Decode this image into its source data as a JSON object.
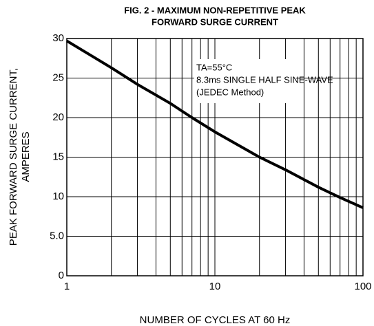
{
  "chart_data": {
    "type": "line",
    "title": [
      "FIG. 2 - MAXIMUM NON-REPETITIVE PEAK",
      "FORWARD SURGE CURRENT"
    ],
    "x_label": "NUMBER OF CYCLES AT 60 Hz",
    "y_label": [
      "PEAK FORWARD SURGE CURRENT,",
      "AMPERES"
    ],
    "annotation": [
      "TA=55°C",
      "8.3ms SINGLE HALF SINE-WAVE",
      "(JEDEC Method)"
    ],
    "x": [
      1,
      2,
      3,
      5,
      7,
      10,
      20,
      30,
      50,
      70,
      100
    ],
    "series": [
      {
        "color": "#000000",
        "values": [
          29.7,
          26.3,
          24.2,
          21.8,
          20.0,
          18.2,
          15.0,
          13.4,
          11.2,
          9.9,
          8.6
        ]
      }
    ],
    "xlim": [
      1,
      100
    ],
    "xticks": [
      1,
      10,
      100
    ],
    "xscale": "log",
    "ylim": [
      0,
      30
    ],
    "yticks": [
      0,
      {
        "value": 5,
        "label": "5.0"
      },
      10,
      15,
      20,
      25,
      30
    ],
    "grid": true
  }
}
